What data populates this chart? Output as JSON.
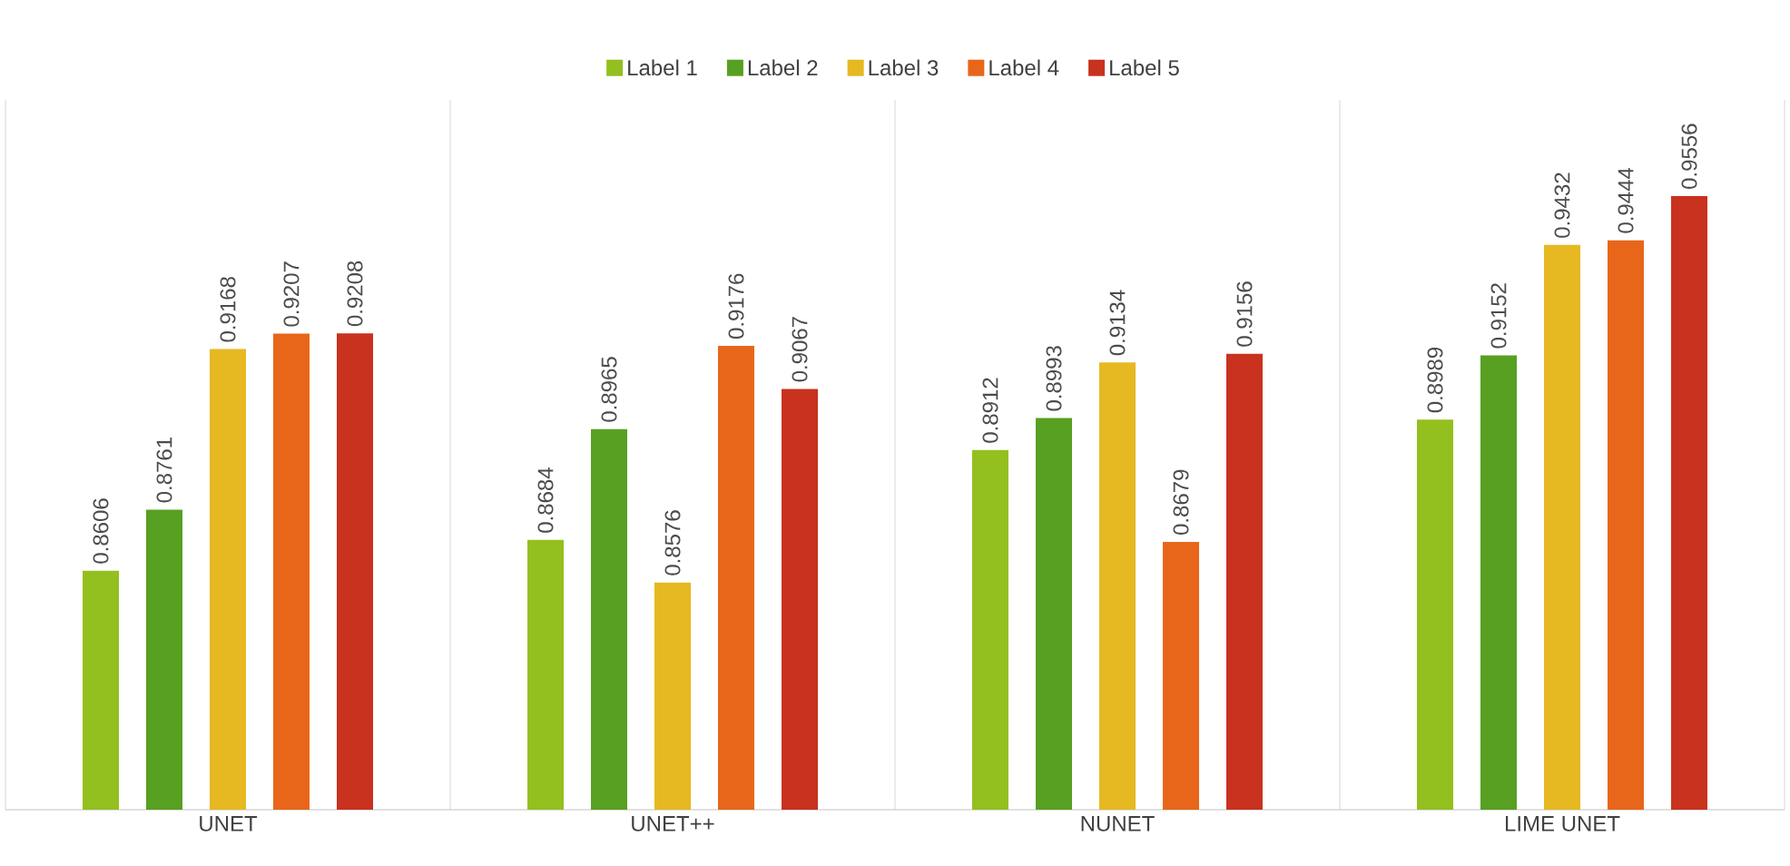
{
  "chart_data": {
    "type": "bar",
    "categories": [
      "UNET",
      "UNET++",
      "NUNET",
      "LIME UNET"
    ],
    "series": [
      {
        "name": "Label 1",
        "color": "#93c01f",
        "values": [
          0.8606,
          0.8684,
          0.8912,
          0.8989
        ]
      },
      {
        "name": "Label 2",
        "color": "#57a022",
        "values": [
          0.8761,
          0.8965,
          0.8993,
          0.9152
        ]
      },
      {
        "name": "Label 3",
        "color": "#e6b822",
        "values": [
          0.9168,
          0.8576,
          0.9134,
          0.9432
        ]
      },
      {
        "name": "Label 4",
        "color": "#e8661a",
        "values": [
          0.9207,
          0.9176,
          0.8679,
          0.9444
        ]
      },
      {
        "name": "Label 5",
        "color": "#c8321e",
        "values": [
          0.9208,
          0.9067,
          0.9156,
          0.9556
        ]
      }
    ],
    "ylim": [
      0.8,
      0.98
    ],
    "data_labels": true,
    "legend": "top"
  }
}
